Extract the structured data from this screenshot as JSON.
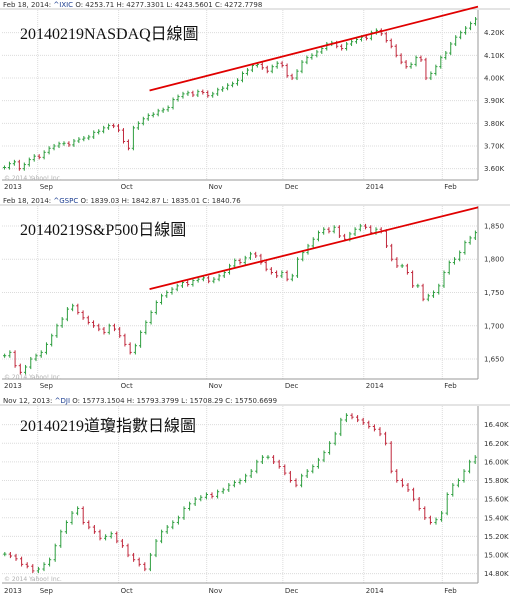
{
  "chart_data": [
    {
      "type": "line",
      "title": "20140219NASDAQ日線圖",
      "header_date": "Feb 18, 2014:",
      "header_symbol": "^IXIC",
      "header_ohlc": "O: 4253.71 H: 4277.3301 L: 4243.5601 C: 4272.7798",
      "copyright": "© 2014 Yahoo! Inc.",
      "x_tick_labels": [
        "2013",
        "Sep",
        "Oct",
        "Nov",
        "Dec",
        "2014",
        "Feb"
      ],
      "y_tick_labels": [
        "4.20K",
        "4.10K",
        "4.00K",
        "3.90K",
        "3.80K",
        "3.70K",
        "3.60K"
      ],
      "y_ticks": [
        4200,
        4100,
        4000,
        3900,
        3800,
        3700,
        3600
      ],
      "ylim": [
        3550,
        4300
      ],
      "series": [
        {
          "values": [
            3605,
            3622,
            3630,
            3600,
            3618,
            3640,
            3655,
            3650,
            3672,
            3690,
            3700,
            3710,
            3712,
            3705,
            3722,
            3730,
            3735,
            3740,
            3760,
            3765,
            3780,
            3790,
            3788,
            3770,
            3720,
            3690,
            3780,
            3800,
            3820,
            3835,
            3840,
            3855,
            3860,
            3870,
            3905,
            3918,
            3930,
            3935,
            3925,
            3940,
            3936,
            3922,
            3930,
            3948,
            3955,
            3968,
            3975,
            3990,
            4020,
            4035,
            4055,
            4060,
            4045,
            4030,
            4050,
            4065,
            4055,
            4010,
            4000,
            4030,
            4070,
            4090,
            4100,
            4115,
            4130,
            4150,
            4155,
            4140,
            4130,
            4150,
            4160,
            4170,
            4180,
            4175,
            4200,
            4210,
            4195,
            4165,
            4140,
            4100,
            4070,
            4050,
            4060,
            4090,
            4080,
            4000,
            4020,
            4050,
            4090,
            4110,
            4150,
            4180,
            4200,
            4220,
            4240,
            4260
          ]
        }
      ],
      "trendline": [
        [
          0.31,
          3945
        ],
        [
          1.0,
          4315
        ]
      ]
    },
    {
      "type": "line",
      "title": "20140219S&P500日線圖",
      "header_date": "Feb 18, 2014:",
      "header_symbol": "^GSPC",
      "header_ohlc": "O: 1839.03 H: 1842.87 L: 1835.01 C: 1840.76",
      "copyright": "© 2014 Yahoo! Inc.",
      "x_tick_labels": [
        "2013",
        "Sep",
        "Oct",
        "Nov",
        "Dec",
        "2014",
        "Feb"
      ],
      "y_tick_labels": [
        "1,850",
        "1,800",
        "1,750",
        "1,700",
        "1,650"
      ],
      "y_ticks": [
        1850,
        1800,
        1750,
        1700,
        1650
      ],
      "ylim": [
        1620,
        1880
      ],
      "series": [
        {
          "values": [
            1655,
            1660,
            1640,
            1630,
            1638,
            1650,
            1655,
            1660,
            1672,
            1685,
            1700,
            1710,
            1725,
            1730,
            1720,
            1712,
            1705,
            1700,
            1695,
            1690,
            1700,
            1695,
            1685,
            1672,
            1660,
            1670,
            1690,
            1705,
            1720,
            1735,
            1745,
            1750,
            1755,
            1760,
            1765,
            1762,
            1768,
            1770,
            1772,
            1767,
            1770,
            1775,
            1780,
            1790,
            1798,
            1795,
            1802,
            1808,
            1805,
            1795,
            1785,
            1780,
            1775,
            1780,
            1770,
            1775,
            1800,
            1810,
            1820,
            1830,
            1840,
            1845,
            1842,
            1848,
            1835,
            1830,
            1838,
            1845,
            1850,
            1848,
            1840,
            1845,
            1842,
            1820,
            1800,
            1790,
            1790,
            1780,
            1760,
            1760,
            1740,
            1745,
            1750,
            1760,
            1780,
            1795,
            1800,
            1810,
            1825,
            1832,
            1840
          ]
        }
      ],
      "trendline": [
        [
          0.31,
          1755
        ],
        [
          1.0,
          1878
        ]
      ]
    },
    {
      "type": "line",
      "title": "20140219道瓊指數日線圖",
      "header_date": "Nov 12, 2013:",
      "header_symbol": "^DJI",
      "header_ohlc": "O: 15773.1504 H: 15793.3799 L: 15708.29 C: 15750.6699",
      "copyright": "© 2014 Yahoo! Inc.",
      "x_tick_labels": [
        "2013",
        "Sep",
        "Oct",
        "Nov",
        "Dec",
        "2014",
        "Feb"
      ],
      "y_tick_labels": [
        "16.40K",
        "16.20K",
        "16.00K",
        "15.80K",
        "15.60K",
        "15.40K",
        "15.20K",
        "15.00K",
        "14.80K"
      ],
      "y_ticks": [
        16400,
        16200,
        16000,
        15800,
        15600,
        15400,
        15200,
        15000,
        14800
      ],
      "ylim": [
        14700,
        16600
      ],
      "series": [
        {
          "values": [
            15010,
            14990,
            14960,
            14900,
            14880,
            14830,
            14850,
            14900,
            14950,
            15100,
            15250,
            15350,
            15450,
            15500,
            15350,
            15300,
            15250,
            15180,
            15200,
            15230,
            15150,
            15100,
            15000,
            14950,
            14900,
            14850,
            15000,
            15150,
            15250,
            15300,
            15350,
            15400,
            15500,
            15550,
            15600,
            15620,
            15650,
            15630,
            15680,
            15700,
            15750,
            15780,
            15800,
            15850,
            15900,
            16000,
            16050,
            16050,
            16000,
            15950,
            15880,
            15800,
            15750,
            15850,
            15900,
            15950,
            16020,
            16100,
            16200,
            16300,
            16450,
            16500,
            16480,
            16450,
            16420,
            16380,
            16350,
            16300,
            16200,
            15900,
            15800,
            15750,
            15700,
            15600,
            15500,
            15400,
            15350,
            15380,
            15450,
            15650,
            15750,
            15800,
            15900,
            16000,
            16050
          ]
        }
      ],
      "trendline": []
    }
  ],
  "colors": {
    "up": "#2e9e3f",
    "down": "#c0283c",
    "trend": "#e00000",
    "grid": "#dcdcdc"
  }
}
